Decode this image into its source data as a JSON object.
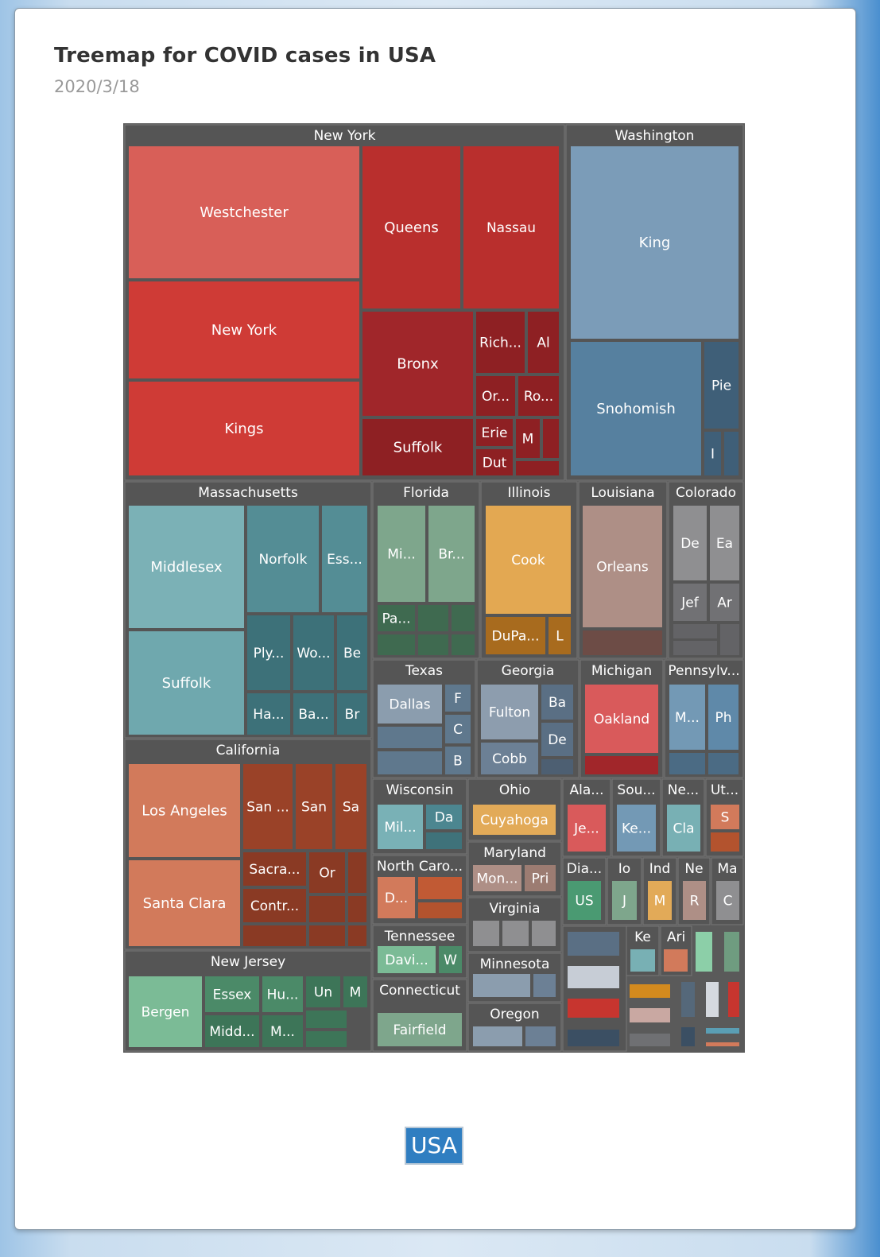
{
  "chart_data": {
    "type": "treemap",
    "title": "Treemap for COVID cases in USA",
    "subtitle": "2020/3/18",
    "breadcrumb": "USA",
    "groups": [
      {
        "name": "New York",
        "color": "#d13a34",
        "cells": [
          {
            "label": "Westchester",
            "fill": "#d85f58"
          },
          {
            "label": "Queens",
            "fill": "#b92f2d"
          },
          {
            "label": "Nassau",
            "fill": "#b92f2d"
          },
          {
            "label": "New York",
            "fill": "#cf3b36"
          },
          {
            "label": "Kings",
            "fill": "#cf3b36"
          },
          {
            "label": "Bronx",
            "fill": "#a0262a"
          },
          {
            "label": "Rich...",
            "fill": "#8e2023"
          },
          {
            "label": "Al",
            "fill": "#8e2023"
          },
          {
            "label": "Or...",
            "fill": "#8e2023"
          },
          {
            "label": "Ro...",
            "fill": "#8e2023"
          },
          {
            "label": "Suffolk",
            "fill": "#8e2023"
          },
          {
            "label": "Erie",
            "fill": "#8e2023"
          },
          {
            "label": "M",
            "fill": "#8e2023"
          },
          {
            "label": "Dut",
            "fill": "#8e2023"
          },
          {
            "label": "",
            "fill": "#8e2023"
          },
          {
            "label": "",
            "fill": "#8e2023"
          }
        ]
      },
      {
        "name": "Washington",
        "color": "#5a80a0",
        "cells": [
          {
            "label": "King",
            "fill": "#7b9cb8"
          },
          {
            "label": "Snohomish",
            "fill": "#56809f"
          },
          {
            "label": "Pie",
            "fill": "#3f5f78"
          },
          {
            "label": "I",
            "fill": "#3f5f78"
          },
          {
            "label": "",
            "fill": "#3f5f78"
          }
        ]
      },
      {
        "name": "Massachusetts",
        "color": "#5f9ea6",
        "cells": [
          {
            "label": "Middlesex",
            "fill": "#7bb1b6"
          },
          {
            "label": "Norfolk",
            "fill": "#548d95"
          },
          {
            "label": "Ess...",
            "fill": "#548d95"
          },
          {
            "label": "Suffolk",
            "fill": "#6fa8ae"
          },
          {
            "label": "Ply...",
            "fill": "#3d7179"
          },
          {
            "label": "Wo...",
            "fill": "#3d7179"
          },
          {
            "label": "Be",
            "fill": "#3d7179"
          },
          {
            "label": "Ha...",
            "fill": "#3d7179"
          },
          {
            "label": "Ba...",
            "fill": "#3d7179"
          },
          {
            "label": "Br",
            "fill": "#3d7179"
          }
        ]
      },
      {
        "name": "Florida",
        "color": "#6f9c80",
        "cells": [
          {
            "label": "Mi...",
            "fill": "#7ea68c"
          },
          {
            "label": "Br...",
            "fill": "#7ea68c"
          },
          {
            "label": "Pa...",
            "fill": "#3f6a50"
          },
          {
            "label": "",
            "fill": "#3f6a50"
          },
          {
            "label": "",
            "fill": "#3f6a50"
          },
          {
            "label": "",
            "fill": "#3f6a50"
          },
          {
            "label": "",
            "fill": "#3f6a50"
          },
          {
            "label": "",
            "fill": "#3f6a50"
          }
        ]
      },
      {
        "name": "Illinois",
        "color": "#e0a64e",
        "cells": [
          {
            "label": "Cook",
            "fill": "#e3a852"
          },
          {
            "label": "DuPa...",
            "fill": "#a86b1e"
          },
          {
            "label": "L",
            "fill": "#a86b1e"
          }
        ]
      },
      {
        "name": "Louisiana",
        "color": "#a98a82",
        "cells": [
          {
            "label": "Orleans",
            "fill": "#ae8f86"
          },
          {
            "label": "",
            "fill": "#6d4c46"
          }
        ]
      },
      {
        "name": "Colorado",
        "color": "#8c8c8c",
        "cells": [
          {
            "label": "De",
            "fill": "#8f8f91"
          },
          {
            "label": "Ea",
            "fill": "#8f8f91"
          },
          {
            "label": "Jef",
            "fill": "#717174"
          },
          {
            "label": "Ar",
            "fill": "#717174"
          },
          {
            "label": "",
            "fill": "#636366"
          },
          {
            "label": "",
            "fill": "#636366"
          },
          {
            "label": "",
            "fill": "#636366"
          }
        ]
      },
      {
        "name": "Texas",
        "color": "#7d93a6",
        "cells": [
          {
            "label": "Dallas",
            "fill": "#8b9dae"
          },
          {
            "label": "F",
            "fill": "#5f788d"
          },
          {
            "label": "C",
            "fill": "#5f788d"
          },
          {
            "label": "B",
            "fill": "#5f788d"
          },
          {
            "label": "",
            "fill": "#5f788d"
          },
          {
            "label": "",
            "fill": "#5f788d"
          }
        ]
      },
      {
        "name": "Georgia",
        "color": "#7c8ea1",
        "cells": [
          {
            "label": "Fulton",
            "fill": "#8d9dae"
          },
          {
            "label": "Ba",
            "fill": "#5a6f84"
          },
          {
            "label": "De",
            "fill": "#5a6f84"
          },
          {
            "label": "Cobb",
            "fill": "#6c8095"
          },
          {
            "label": "",
            "fill": "#4d5f72"
          }
        ]
      },
      {
        "name": "Michigan",
        "color": "#d9585a",
        "cells": [
          {
            "label": "Oakland",
            "fill": "#d95a5b"
          },
          {
            "label": "",
            "fill": "#a1262a"
          }
        ]
      },
      {
        "name": "Pennsylv...",
        "color": "#6d93b0",
        "cells": [
          {
            "label": "M...",
            "fill": "#7399b5"
          },
          {
            "label": "Ph",
            "fill": "#5f89a9"
          },
          {
            "label": "",
            "fill": "#4b6b84"
          },
          {
            "label": "",
            "fill": "#4b6b84"
          }
        ]
      },
      {
        "name": "California",
        "color": "#c8694c",
        "cells": [
          {
            "label": "Los Angeles",
            "fill": "#d27a5b"
          },
          {
            "label": "San ...",
            "fill": "#9a4228"
          },
          {
            "label": "San",
            "fill": "#9a4228"
          },
          {
            "label": "Sa",
            "fill": "#9a4228"
          },
          {
            "label": "Santa Clara",
            "fill": "#d27a5b"
          },
          {
            "label": "Sacra...",
            "fill": "#8a3a24"
          },
          {
            "label": "Or",
            "fill": "#8a3a24"
          },
          {
            "label": "Contr...",
            "fill": "#8a3a24"
          },
          {
            "label": "",
            "fill": "#8a3a24"
          },
          {
            "label": "",
            "fill": "#8a3a24"
          },
          {
            "label": "",
            "fill": "#8a3a24"
          },
          {
            "label": "",
            "fill": "#8a3a24"
          },
          {
            "label": "",
            "fill": "#8a3a24"
          },
          {
            "label": "",
            "fill": "#8a3a24"
          }
        ]
      },
      {
        "name": "New Jersey",
        "color": "#5a9e78",
        "cells": [
          {
            "label": "Bergen",
            "fill": "#7bbb96"
          },
          {
            "label": "Essex",
            "fill": "#4b8a68"
          },
          {
            "label": "Hu...",
            "fill": "#4b8a68"
          },
          {
            "label": "Un",
            "fill": "#3d7558"
          },
          {
            "label": "M",
            "fill": "#3d7558"
          },
          {
            "label": "Midd...",
            "fill": "#3d7558"
          },
          {
            "label": "M...",
            "fill": "#3d7558"
          },
          {
            "label": "",
            "fill": "#3d7558"
          },
          {
            "label": "",
            "fill": "#3d7558"
          }
        ]
      },
      {
        "name": "Wisconsin",
        "color": "#6ca7ad",
        "cells": [
          {
            "label": "Mil...",
            "fill": "#79b1b6"
          },
          {
            "label": "Da",
            "fill": "#4c8690"
          },
          {
            "label": "",
            "fill": "#3f727a"
          }
        ]
      },
      {
        "name": "Ohio",
        "color": "#e1a853",
        "cells": [
          {
            "label": "Cuyahoga",
            "fill": "#e2aa58"
          }
        ]
      },
      {
        "name": "Ala...",
        "color": "#d9585a",
        "cells": [
          {
            "label": "Je...",
            "fill": "#d95a5b"
          }
        ]
      },
      {
        "name": "Sou...",
        "color": "#6d93b0",
        "cells": [
          {
            "label": "Ke...",
            "fill": "#7399b5"
          }
        ]
      },
      {
        "name": "Ne...",
        "color": "#78b0b4",
        "cells": [
          {
            "label": "Cla",
            "fill": "#78b0b4"
          }
        ]
      },
      {
        "name": "Ut...",
        "color": "#c8694c",
        "cells": [
          {
            "label": "S",
            "fill": "#d27a5b"
          },
          {
            "label": "",
            "fill": "#b3532e"
          }
        ]
      },
      {
        "name": "North Caro...",
        "color": "#c8694c",
        "cells": [
          {
            "label": "D...",
            "fill": "#d27a5b"
          },
          {
            "label": "",
            "fill": "#c15a34"
          },
          {
            "label": "",
            "fill": "#b3532e"
          }
        ]
      },
      {
        "name": "Maryland",
        "color": "#ae8f86",
        "cells": [
          {
            "label": "Mon...",
            "fill": "#ae8f86"
          },
          {
            "label": "Pri",
            "fill": "#9c7c72"
          }
        ]
      },
      {
        "name": "Dia...",
        "color": "#4a9a72",
        "cells": [
          {
            "label": "US",
            "fill": "#4a9a72"
          }
        ]
      },
      {
        "name": "Io",
        "color": "#7ea68c",
        "cells": [
          {
            "label": "J",
            "fill": "#7ea68c"
          }
        ]
      },
      {
        "name": "Ind",
        "color": "#e2aa58",
        "cells": [
          {
            "label": "M",
            "fill": "#e2aa58"
          }
        ]
      },
      {
        "name": "Ne",
        "color": "#ae8f86",
        "cells": [
          {
            "label": "R",
            "fill": "#ae8f86"
          }
        ]
      },
      {
        "name": "Ma",
        "color": "#8f8f91",
        "cells": [
          {
            "label": "C",
            "fill": "#8f8f91"
          }
        ]
      },
      {
        "name": "Virginia",
        "color": "#8f8f91",
        "cells": [
          {
            "label": "",
            "fill": "#8f8f91"
          },
          {
            "label": "",
            "fill": "#8f8f91"
          },
          {
            "label": "",
            "fill": "#8f8f91"
          }
        ]
      },
      {
        "name": "Tennessee",
        "color": "#7bbb96",
        "cells": [
          {
            "label": "Davi...",
            "fill": "#7bbb96"
          },
          {
            "label": "W",
            "fill": "#4b8a68"
          }
        ]
      },
      {
        "name": "Minnesota",
        "color": "#8b9dae",
        "cells": [
          {
            "label": "",
            "fill": "#8b9dae"
          },
          {
            "label": "",
            "fill": "#6c8095"
          }
        ]
      },
      {
        "name": "Connecticut",
        "color": "#7ea68c",
        "cells": [
          {
            "label": "Fairfield",
            "fill": "#7ea68c"
          }
        ]
      },
      {
        "name": "Oregon",
        "color": "#8b9dae",
        "cells": [
          {
            "label": "",
            "fill": "#8b9dae"
          },
          {
            "label": "",
            "fill": "#6c8095"
          }
        ]
      },
      {
        "name": "Ke",
        "color": "#78b0b4",
        "cells": [
          {
            "label": "",
            "fill": "#78b0b4"
          }
        ]
      },
      {
        "name": "Ari",
        "color": "#d27a5b",
        "cells": [
          {
            "label": "",
            "fill": "#d27a5b"
          }
        ]
      },
      {
        "name": "",
        "color": "#5a6f84",
        "cells": [
          {
            "label": "",
            "fill": "#5a6f84"
          },
          {
            "label": "",
            "fill": "#c7cdd6"
          },
          {
            "label": "",
            "fill": "#c7352f"
          },
          {
            "label": "",
            "fill": "#3b4f63"
          },
          {
            "label": "",
            "fill": "#8ccfa8"
          },
          {
            "label": "",
            "fill": "#6f9c80"
          },
          {
            "label": "",
            "fill": "#d38a1e"
          },
          {
            "label": "",
            "fill": "#c9a8a2"
          },
          {
            "label": "",
            "fill": "#6f7073"
          },
          {
            "label": "",
            "fill": "#55687a"
          },
          {
            "label": "",
            "fill": "#d5d9df"
          },
          {
            "label": "",
            "fill": "#c7352f"
          },
          {
            "label": "",
            "fill": "#3b4f63"
          },
          {
            "label": "",
            "fill": "#5a9eb4"
          },
          {
            "label": "",
            "fill": "#d27a5b"
          }
        ]
      }
    ]
  }
}
